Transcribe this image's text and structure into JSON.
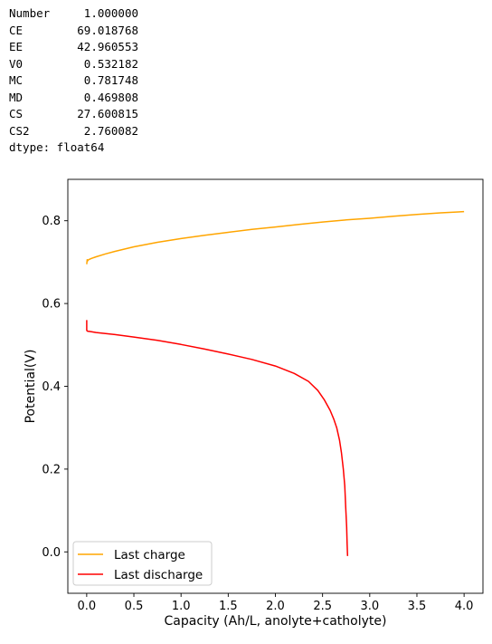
{
  "output_series": {
    "rows": [
      {
        "key": "Number",
        "value": "1.000000"
      },
      {
        "key": "CE",
        "value": "69.018768"
      },
      {
        "key": "EE",
        "value": "42.960553"
      },
      {
        "key": "V0",
        "value": "0.532182"
      },
      {
        "key": "MC",
        "value": "0.781748"
      },
      {
        "key": "MD",
        "value": "0.469808"
      },
      {
        "key": "CS",
        "value": "27.600815"
      },
      {
        "key": "CS2",
        "value": "2.760082"
      }
    ],
    "dtype_line": "dtype: float64"
  },
  "chart_data": {
    "type": "line",
    "title": "",
    "xlabel": "Capacity (Ah/L, anolyte+catholyte)",
    "ylabel": "Potential(V)",
    "xlim": [
      -0.2,
      4.2
    ],
    "ylim": [
      -0.1,
      0.9
    ],
    "xticks": [
      0.0,
      0.5,
      1.0,
      1.5,
      2.0,
      2.5,
      3.0,
      3.5,
      4.0
    ],
    "xtick_labels": [
      "0.0",
      "0.5",
      "1.0",
      "1.5",
      "2.0",
      "2.5",
      "3.0",
      "3.5",
      "4.0"
    ],
    "yticks": [
      0.0,
      0.2,
      0.4,
      0.6,
      0.8
    ],
    "ytick_labels": [
      "0.0",
      "0.2",
      "0.4",
      "0.6",
      "0.8"
    ],
    "grid": false,
    "legend": "lower-left",
    "series": [
      {
        "name": "Last charge",
        "color": "#ffa500",
        "x": [
          0.0,
          0.005,
          0.01,
          0.02,
          0.05,
          0.1,
          0.2,
          0.3,
          0.5,
          0.75,
          1.0,
          1.25,
          1.5,
          1.75,
          2.0,
          2.25,
          2.5,
          2.75,
          3.0,
          3.25,
          3.5,
          3.75,
          4.0
        ],
        "y": [
          0.695,
          0.706,
          0.703,
          0.706,
          0.709,
          0.713,
          0.72,
          0.726,
          0.737,
          0.748,
          0.757,
          0.765,
          0.772,
          0.779,
          0.785,
          0.791,
          0.797,
          0.802,
          0.806,
          0.811,
          0.815,
          0.819,
          0.822
        ]
      },
      {
        "name": "Last discharge",
        "color": "#ff0000",
        "x": [
          0.0,
          0.0,
          0.01,
          0.02,
          0.05,
          0.1,
          0.3,
          0.5,
          0.75,
          1.0,
          1.25,
          1.5,
          1.75,
          2.0,
          2.2,
          2.35,
          2.45,
          2.52,
          2.58,
          2.62,
          2.65,
          2.68,
          2.7,
          2.72,
          2.735,
          2.745,
          2.755,
          2.76,
          2.765
        ],
        "y": [
          0.56,
          0.535,
          0.533,
          0.533,
          0.532,
          0.53,
          0.525,
          0.519,
          0.511,
          0.501,
          0.49,
          0.478,
          0.465,
          0.449,
          0.431,
          0.412,
          0.39,
          0.367,
          0.342,
          0.32,
          0.3,
          0.27,
          0.24,
          0.2,
          0.16,
          0.11,
          0.06,
          0.02,
          -0.01
        ]
      }
    ]
  }
}
